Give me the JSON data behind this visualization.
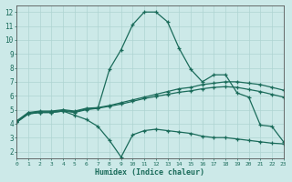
{
  "xlabel": "Humidex (Indice chaleur)",
  "bg_color": "#cce9e8",
  "grid_color": "#aed4d2",
  "line_color": "#1a6b5a",
  "x": [
    0,
    1,
    2,
    3,
    4,
    5,
    6,
    7,
    8,
    9,
    10,
    11,
    12,
    13,
    14,
    15,
    16,
    17,
    18,
    19,
    20,
    21,
    22,
    23
  ],
  "line1": [
    4.1,
    4.7,
    4.8,
    4.8,
    4.9,
    4.8,
    5.0,
    5.1,
    7.9,
    9.3,
    11.1,
    12.0,
    12.0,
    11.3,
    9.4,
    7.9,
    7.0,
    7.5,
    7.5,
    6.2,
    5.9,
    3.9,
    3.8,
    2.7
  ],
  "line2": [
    4.2,
    4.8,
    4.9,
    4.9,
    5.0,
    4.9,
    5.1,
    5.15,
    5.3,
    5.5,
    5.7,
    5.9,
    6.1,
    6.3,
    6.5,
    6.6,
    6.8,
    6.9,
    7.0,
    7.0,
    6.9,
    6.8,
    6.6,
    6.4
  ],
  "line3": [
    4.15,
    4.75,
    4.85,
    4.85,
    4.95,
    4.85,
    5.05,
    5.1,
    5.25,
    5.4,
    5.6,
    5.8,
    5.95,
    6.1,
    6.25,
    6.35,
    6.5,
    6.6,
    6.65,
    6.6,
    6.45,
    6.3,
    6.1,
    5.9
  ],
  "line4": [
    4.1,
    4.7,
    4.8,
    4.8,
    4.9,
    4.6,
    4.3,
    3.8,
    2.8,
    1.6,
    3.2,
    3.5,
    3.6,
    3.5,
    3.4,
    3.3,
    3.1,
    3.0,
    3.0,
    2.9,
    2.8,
    2.7,
    2.6,
    2.55
  ],
  "ylim": [
    1.5,
    12.5
  ],
  "yticks": [
    2,
    3,
    4,
    5,
    6,
    7,
    8,
    9,
    10,
    11,
    12
  ],
  "xlim": [
    0,
    23
  ]
}
